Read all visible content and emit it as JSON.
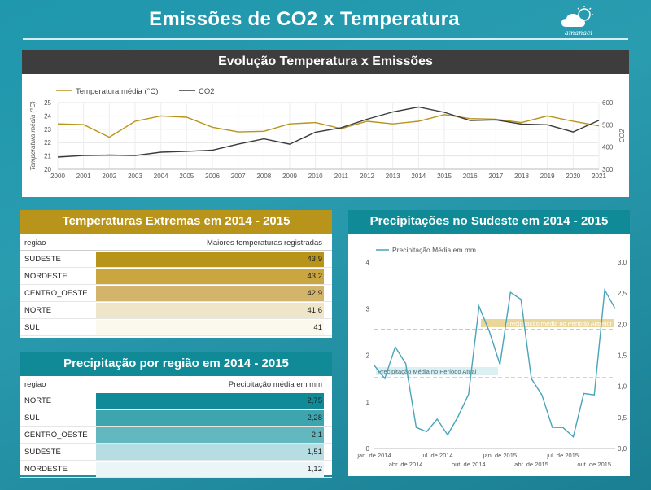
{
  "header": {
    "title": "Emissões de CO2  x  Temperatura",
    "logo_text": "amanaci"
  },
  "main_chart": {
    "title": "Evolução Temperatura x Emissões",
    "legend": [
      "Temperatura média (°C)",
      "CO2"
    ],
    "ylabel_left": "Temperatura média (°C)",
    "ylabel_right": "CO2",
    "colors": {
      "temperature": "#b8941a",
      "co2": "#3a3a3a"
    }
  },
  "temp_table": {
    "title": "Temperaturas Extremas em 2014 - 2015",
    "col1": "regiao",
    "col2": "Maiores temperaturas registradas",
    "rows": [
      {
        "region": "SUDESTE",
        "value": "43,9",
        "color": "#b8941a"
      },
      {
        "region": "NORDESTE",
        "value": "43,2",
        "color": "#c9a640"
      },
      {
        "region": "CENTRO_OESTE",
        "value": "42,9",
        "color": "#d2b56a"
      },
      {
        "region": "NORTE",
        "value": "41,6",
        "color": "#efe5c8"
      },
      {
        "region": "SUL",
        "value": "41",
        "color": "#fbf8ee"
      }
    ]
  },
  "prec_table": {
    "title": "Precipitação por região em 2014 - 2015",
    "col1": "regiao",
    "col2": "Precipitação média em mm",
    "rows": [
      {
        "region": "NORTE",
        "value": "2,75",
        "color": "#0f8a96"
      },
      {
        "region": "SUL",
        "value": "2,28",
        "color": "#3ea5ae"
      },
      {
        "region": "CENTRO_OESTE",
        "value": "2,1",
        "color": "#63b7be"
      },
      {
        "region": "SUDESTE",
        "value": "1,51",
        "color": "#b6dde1"
      },
      {
        "region": "NORDESTE",
        "value": "1,12",
        "color": "#e9f5f6"
      }
    ]
  },
  "sudeste_chart": {
    "title": "Precipitações no Sudeste em 2014 - 2015",
    "legend": "Precipitação Média em mm",
    "line_color": "#4aa3b8",
    "ref_lines": [
      {
        "label": "Precipitação média no Período Anterior",
        "value": 2.55,
        "color": "#c9a640"
      },
      {
        "label": "Precipitação Média no Período Atual",
        "value": 1.52,
        "color": "#9fd3dd"
      }
    ]
  },
  "chart_data": [
    {
      "type": "line",
      "x": [
        2000,
        2001,
        2002,
        2003,
        2004,
        2005,
        2006,
        2007,
        2008,
        2009,
        2010,
        2011,
        2012,
        2013,
        2014,
        2015,
        2016,
        2017,
        2018,
        2019,
        2020,
        2021
      ],
      "series": [
        {
          "name": "Temperatura média (°C)",
          "axis": "left",
          "values": [
            23.4,
            23.35,
            22.4,
            23.6,
            24.0,
            23.9,
            23.15,
            22.8,
            22.85,
            23.4,
            23.5,
            23.05,
            23.6,
            23.4,
            23.6,
            24.1,
            23.8,
            23.75,
            23.5,
            24.0,
            23.6,
            23.25
          ]
        },
        {
          "name": "CO2",
          "axis": "right",
          "values": [
            355,
            362,
            364,
            362,
            377,
            381,
            386,
            413,
            437,
            413,
            467,
            487,
            525,
            558,
            580,
            556,
            519,
            522,
            503,
            500,
            468,
            520
          ]
        }
      ],
      "ylim_left": [
        20,
        25
      ],
      "yticks_left": [
        20,
        21,
        22,
        23,
        24,
        25
      ],
      "ylim_right": [
        300,
        600
      ],
      "yticks_right": [
        300,
        400,
        500,
        600
      ],
      "legend_position": "top-left",
      "grid": true
    },
    {
      "type": "line",
      "x_ticks_top": [
        "jan. de 2014",
        "jul. de 2014",
        "jan. de 2015",
        "jul. de 2015"
      ],
      "x_ticks_bottom": [
        "abr. de 2014",
        "out. de 2014",
        "abr. de 2015",
        "out. de 2015"
      ],
      "x_range": [
        "jan. de 2014",
        "dez. de 2015"
      ],
      "series": [
        {
          "name": "Precipitação Média em mm",
          "axis": "left",
          "values": [
            1.78,
            1.5,
            2.18,
            1.82,
            0.45,
            0.36,
            0.63,
            0.29,
            0.69,
            1.16,
            3.05,
            2.5,
            1.8,
            3.35,
            3.2,
            1.5,
            1.15,
            0.45,
            0.45,
            0.25,
            1.18,
            1.15,
            3.4,
            3.0
          ]
        }
      ],
      "ylim_left": [
        0,
        4
      ],
      "yticks_left": [
        0,
        1,
        2,
        3,
        4
      ],
      "ylim_right": [
        0,
        3
      ],
      "yticks_right": [
        "0,0",
        "0,5",
        "1,0",
        "1,5",
        "2,0",
        "2,5",
        "3,0"
      ],
      "legend_position": "top-left",
      "grid": false
    }
  ]
}
